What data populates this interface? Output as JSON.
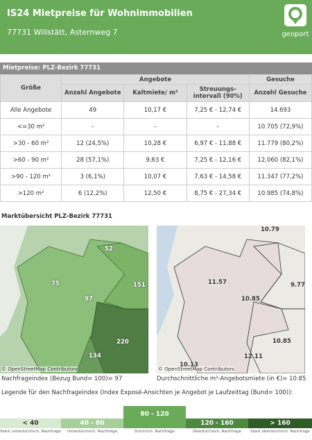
{
  "header": {
    "title": "IS24 Mietpreise für Wohnimmobilien",
    "subtitle": "77731 Willstätt, Asternweg 7",
    "logo": "geoport"
  },
  "table": {
    "title": "Mietpreise: PLZ-Bezirk 77731",
    "groups": [
      "Angebote",
      "Gesuche"
    ],
    "columns": [
      "Größe",
      "Anzahl Angebote",
      "Kaltmiete/ m²",
      "Streuungs-intervall (90%)",
      "Anzahl Gesuche"
    ],
    "rows": [
      [
        "Alle Angebote",
        "49",
        "10,17 €",
        "7,25 € - 12,74 €",
        "14.693"
      ],
      [
        "<=30 m²",
        "-",
        "-",
        "-",
        "10.705 (72,9%)"
      ],
      [
        ">30 - 60 m²",
        "12 (24,5%)",
        "10,28 €",
        "6,97 € - 11,88 €",
        "11.779 (80,2%)"
      ],
      [
        ">60 - 90 m²",
        "28 (57,1%)",
        "9,63 €",
        "7,25 € - 12,16 €",
        "12.060 (82,1%)"
      ],
      [
        ">90 - 120 m²",
        "3 (6,1%)",
        "10,07 €",
        "7,63 € - 14,58 €",
        "11.347 (77,2%)"
      ],
      [
        ">120 m²",
        "6 (12,2%)",
        "12,50 €",
        "8,75 € - 27,34 €",
        "10.985 (74,8%)"
      ]
    ]
  },
  "market": {
    "title": "Marktübersicht PLZ-Bezirk 77731",
    "maps": [
      {
        "labels": [
          "75",
          "52",
          "151",
          "97",
          "220",
          "134"
        ],
        "credit": "© OpenStreetMap Contributors",
        "caption": "Nachfrageindex (Bezug Bund= 100)= 97"
      },
      {
        "labels": [
          "10.79",
          "11.57",
          "9.77",
          "10.85",
          "10.85",
          "12.11",
          "10.13"
        ],
        "credit": "© OpenStreetMap Contributors",
        "caption": "Durchschnittliche m²-Angebotsmiete (in €)= 10.85"
      }
    ]
  },
  "legend": {
    "title": "Legende für den Nachfrageindex (Index Exposé-Ansichten je Angebot je Laufzeittag (Bund= 100)):",
    "items": [
      {
        "label": "< 40",
        "note": "Stark unterdurchsch. Nachfrage"
      },
      {
        "label": "40 - 80",
        "note": "Unterdurchsch. Nachfrage"
      },
      {
        "label": "80 - 120",
        "note": "Durchsch. Nachfrage"
      },
      {
        "label": "120 - 160",
        "note": "Überdurchsch. Nachfrage"
      },
      {
        "label": "> 160",
        "note": "Stark überdurchsch. Nachfrage"
      }
    ]
  }
}
